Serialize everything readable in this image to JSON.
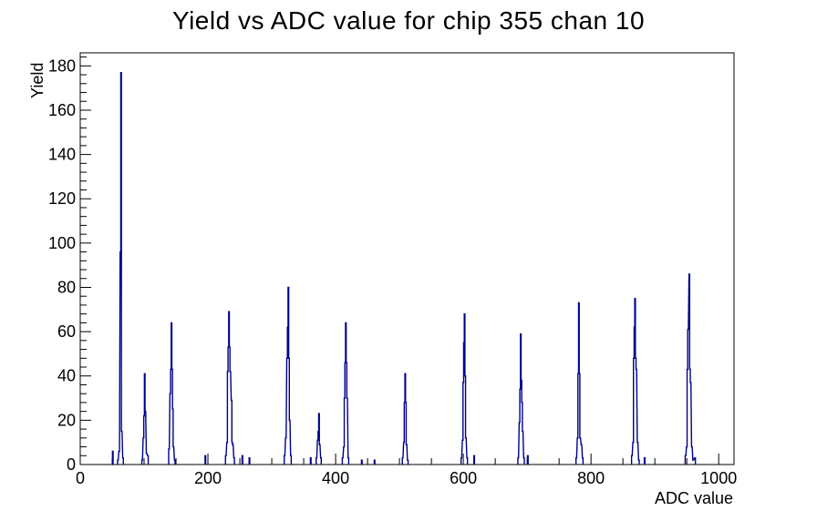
{
  "chart_data": {
    "type": "bar",
    "title": "Yield vs ADC value for chip 355 chan 10",
    "xlabel": "ADC value",
    "ylabel": "Yield",
    "xlim": [
      0,
      1024
    ],
    "ylim": [
      0,
      185.9
    ],
    "x_major_ticks": [
      0,
      200,
      400,
      600,
      800,
      1000
    ],
    "x_minor_step": 50,
    "y_major_ticks": [
      0,
      20,
      40,
      60,
      80,
      100,
      120,
      140,
      160,
      180
    ],
    "y_minor_step": 4,
    "grid": false,
    "legend_position": "none",
    "line_color": "#00008b",
    "axis_color": "#000000",
    "background_color": "#ffffff",
    "peak_summary": [
      {
        "adc": 64,
        "yield": 177
      },
      {
        "adc": 101,
        "yield": 41
      },
      {
        "adc": 143,
        "yield": 64
      },
      {
        "adc": 233,
        "yield": 69
      },
      {
        "adc": 326,
        "yield": 80
      },
      {
        "adc": 374,
        "yield": 23
      },
      {
        "adc": 416,
        "yield": 64
      },
      {
        "adc": 509,
        "yield": 41
      },
      {
        "adc": 602,
        "yield": 68
      },
      {
        "adc": 690,
        "yield": 59
      },
      {
        "adc": 781,
        "yield": 73
      },
      {
        "adc": 869,
        "yield": 75
      },
      {
        "adc": 954,
        "yield": 86
      }
    ],
    "bins": [
      [
        51,
        6
      ],
      [
        59,
        2
      ],
      [
        61,
        6
      ],
      [
        63,
        96
      ],
      [
        64,
        177
      ],
      [
        65,
        15
      ],
      [
        67,
        3
      ],
      [
        97,
        2
      ],
      [
        99,
        12
      ],
      [
        100,
        22
      ],
      [
        101,
        41
      ],
      [
        102,
        24
      ],
      [
        104,
        5
      ],
      [
        106,
        4
      ],
      [
        139,
        7
      ],
      [
        141,
        32
      ],
      [
        142,
        43
      ],
      [
        143,
        64
      ],
      [
        144,
        43
      ],
      [
        145,
        25
      ],
      [
        146,
        8
      ],
      [
        148,
        2
      ],
      [
        196,
        4
      ],
      [
        228,
        4
      ],
      [
        230,
        10
      ],
      [
        231,
        42
      ],
      [
        232,
        53
      ],
      [
        233,
        69
      ],
      [
        234,
        53
      ],
      [
        235,
        42
      ],
      [
        237,
        29
      ],
      [
        238,
        10
      ],
      [
        239,
        9
      ],
      [
        241,
        3
      ],
      [
        254,
        4
      ],
      [
        265,
        3
      ],
      [
        320,
        4
      ],
      [
        322,
        12
      ],
      [
        324,
        48
      ],
      [
        325,
        62
      ],
      [
        326,
        80
      ],
      [
        327,
        48
      ],
      [
        328,
        20
      ],
      [
        330,
        4
      ],
      [
        361,
        3
      ],
      [
        370,
        3
      ],
      [
        372,
        11
      ],
      [
        373,
        15
      ],
      [
        374,
        23
      ],
      [
        375,
        9
      ],
      [
        377,
        3
      ],
      [
        411,
        3
      ],
      [
        413,
        8
      ],
      [
        414,
        30
      ],
      [
        415,
        46
      ],
      [
        416,
        64
      ],
      [
        417,
        46
      ],
      [
        418,
        30
      ],
      [
        420,
        3
      ],
      [
        441,
        2
      ],
      [
        461,
        2
      ],
      [
        505,
        3
      ],
      [
        507,
        10
      ],
      [
        508,
        28
      ],
      [
        509,
        41
      ],
      [
        510,
        28
      ],
      [
        511,
        9
      ],
      [
        513,
        2
      ],
      [
        597,
        3
      ],
      [
        599,
        11
      ],
      [
        600,
        37
      ],
      [
        601,
        55
      ],
      [
        602,
        68
      ],
      [
        603,
        40
      ],
      [
        604,
        12
      ],
      [
        606,
        3
      ],
      [
        617,
        4
      ],
      [
        686,
        3
      ],
      [
        688,
        19
      ],
      [
        689,
        34
      ],
      [
        690,
        59
      ],
      [
        691,
        38
      ],
      [
        692,
        28
      ],
      [
        693,
        15
      ],
      [
        695,
        3
      ],
      [
        701,
        4
      ],
      [
        777,
        3
      ],
      [
        779,
        12
      ],
      [
        780,
        41
      ],
      [
        781,
        73
      ],
      [
        782,
        41
      ],
      [
        783,
        12
      ],
      [
        785,
        9
      ],
      [
        787,
        3
      ],
      [
        864,
        4
      ],
      [
        866,
        10
      ],
      [
        867,
        48
      ],
      [
        868,
        62
      ],
      [
        869,
        75
      ],
      [
        870,
        48
      ],
      [
        871,
        43
      ],
      [
        873,
        10
      ],
      [
        875,
        2
      ],
      [
        884,
        3
      ],
      [
        948,
        4
      ],
      [
        950,
        8
      ],
      [
        951,
        43
      ],
      [
        952,
        61
      ],
      [
        954,
        86
      ],
      [
        955,
        43
      ],
      [
        956,
        37
      ],
      [
        958,
        8
      ],
      [
        960,
        2
      ],
      [
        963,
        3
      ]
    ]
  }
}
